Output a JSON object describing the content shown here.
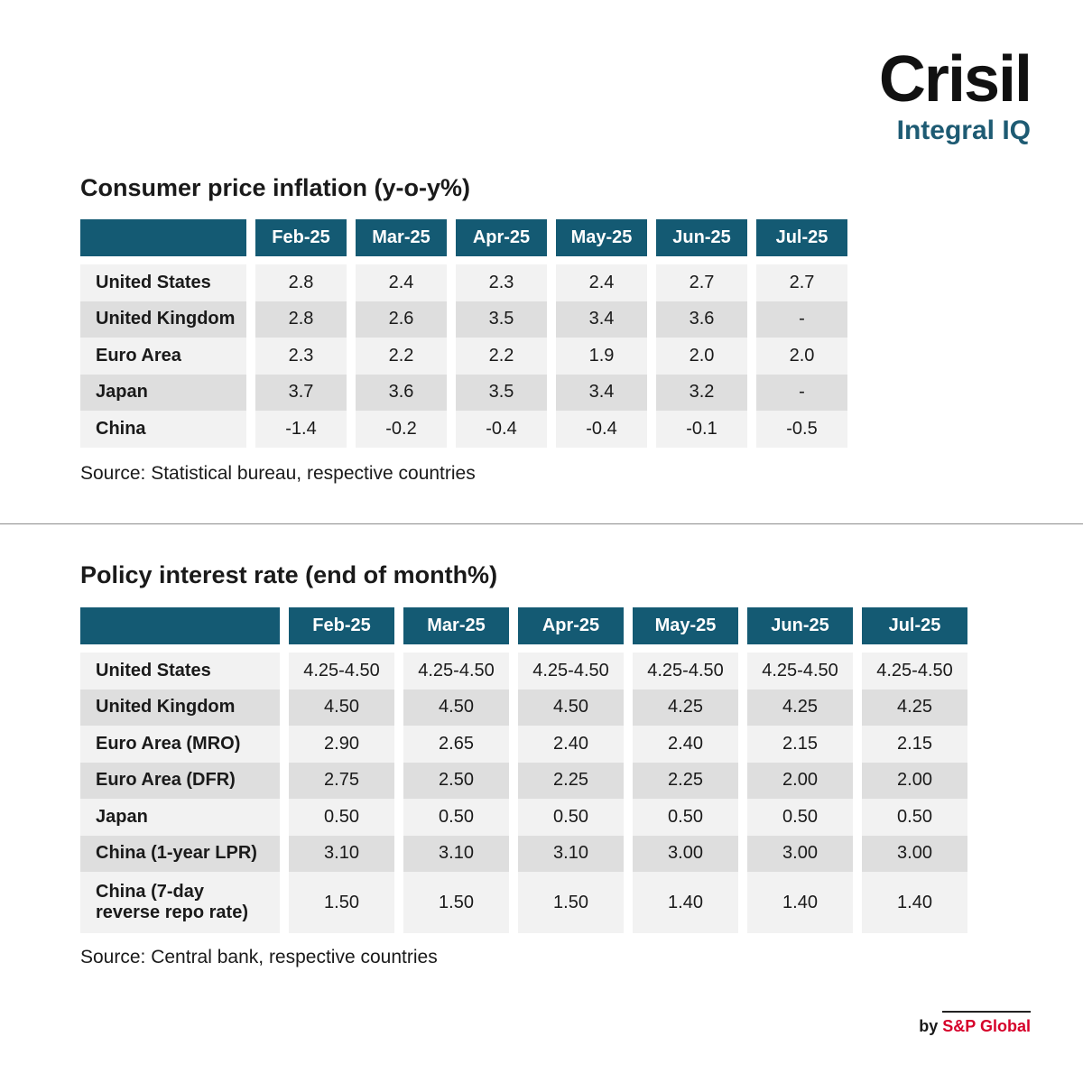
{
  "logo": {
    "main": "Crisil",
    "sub": "Integral IQ"
  },
  "inflation": {
    "title": "Consumer price inflation (y-o-y%)",
    "months": [
      "Feb-25",
      "Mar-25",
      "Apr-25",
      "May-25",
      "Jun-25",
      "Jul-25"
    ],
    "rows": [
      {
        "country": "United States",
        "values": [
          "2.8",
          "2.4",
          "2.3",
          "2.4",
          "2.7",
          "2.7"
        ]
      },
      {
        "country": "United Kingdom",
        "values": [
          "2.8",
          "2.6",
          "3.5",
          "3.4",
          "3.6",
          "-"
        ]
      },
      {
        "country": "Euro Area",
        "values": [
          "2.3",
          "2.2",
          "2.2",
          "1.9",
          "2.0",
          "2.0"
        ]
      },
      {
        "country": "Japan",
        "values": [
          "3.7",
          "3.6",
          "3.5",
          "3.4",
          "3.2",
          "-"
        ]
      },
      {
        "country": "China",
        "values": [
          "-1.4",
          "-0.2",
          "-0.4",
          "-0.4",
          "-0.1",
          "-0.5"
        ]
      }
    ],
    "source": "Source: Statistical bureau, respective countries"
  },
  "policy": {
    "title": "Policy interest rate (end of month%)",
    "months": [
      "Feb-25",
      "Mar-25",
      "Apr-25",
      "May-25",
      "Jun-25",
      "Jul-25"
    ],
    "rows": [
      {
        "country": "United States",
        "values": [
          "4.25-4.50",
          "4.25-4.50",
          "4.25-4.50",
          "4.25-4.50",
          "4.25-4.50",
          "4.25-4.50"
        ]
      },
      {
        "country": "United Kingdom",
        "values": [
          "4.50",
          "4.50",
          "4.50",
          "4.25",
          "4.25",
          "4.25"
        ]
      },
      {
        "country": "Euro Area (MRO)",
        "values": [
          "2.90",
          "2.65",
          "2.40",
          "2.40",
          "2.15",
          "2.15"
        ]
      },
      {
        "country": "Euro Area (DFR)",
        "values": [
          "2.75",
          "2.50",
          "2.25",
          "2.25",
          "2.00",
          "2.00"
        ]
      },
      {
        "country": "Japan",
        "values": [
          "0.50",
          "0.50",
          "0.50",
          "0.50",
          "0.50",
          "0.50"
        ]
      },
      {
        "country": "China (1-year LPR)",
        "values": [
          "3.10",
          "3.10",
          "3.10",
          "3.00",
          "3.00",
          "3.00"
        ]
      },
      {
        "country_line1": "China (7-day",
        "country_line2": "reverse repo rate)",
        "values": [
          "1.50",
          "1.50",
          "1.50",
          "1.40",
          "1.40",
          "1.40"
        ]
      }
    ],
    "source": "Source: Central bank, respective countries"
  },
  "footer": {
    "by": "by",
    "brand": "S&P Global"
  }
}
